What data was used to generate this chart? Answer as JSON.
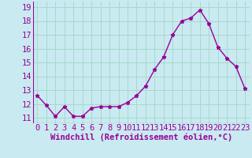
{
  "x": [
    0,
    1,
    2,
    3,
    4,
    5,
    6,
    7,
    8,
    9,
    10,
    11,
    12,
    13,
    14,
    15,
    16,
    17,
    18,
    19,
    20,
    21,
    22,
    23
  ],
  "y": [
    12.6,
    11.9,
    11.1,
    11.8,
    11.1,
    11.1,
    11.7,
    11.8,
    11.8,
    11.8,
    12.1,
    12.6,
    13.3,
    14.5,
    15.4,
    17.0,
    18.0,
    18.2,
    18.8,
    17.8,
    16.1,
    15.3,
    14.7,
    13.1
  ],
  "line_color": "#990099",
  "marker": "*",
  "bg_color": "#c8eaf0",
  "grid_color": "#a8d8cc",
  "xlabel": "Windchill (Refroidissement éolien,°C)",
  "xlabel_color": "#990099",
  "tick_color": "#990099",
  "ylim_min": 10.6,
  "ylim_max": 19.4,
  "xlim_min": -0.5,
  "xlim_max": 23.5,
  "yticks": [
    11,
    12,
    13,
    14,
    15,
    16,
    17,
    18,
    19
  ],
  "xticks": [
    0,
    1,
    2,
    3,
    4,
    5,
    6,
    7,
    8,
    9,
    10,
    11,
    12,
    13,
    14,
    15,
    16,
    17,
    18,
    19,
    20,
    21,
    22,
    23
  ],
  "xlabel_fontsize": 7.5,
  "tick_fontsize": 7.5,
  "linewidth": 1.0,
  "markersize": 3.5
}
